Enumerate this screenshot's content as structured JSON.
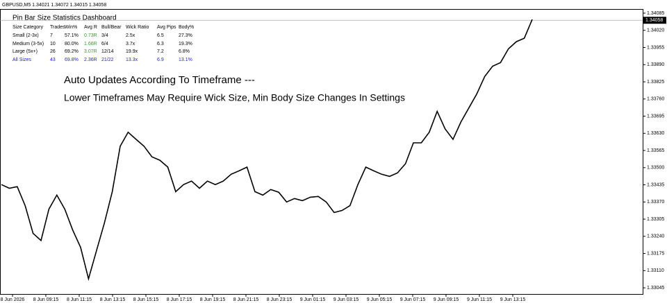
{
  "chart_data": {
    "type": "line",
    "symbol_header": "GBPUSD,M5  1.34021 1.34072 1.34015 1.34058",
    "title": "Pin Bar Size Statistics Dashboard",
    "annotations": [
      "Auto Updates According To Timeframe ---",
      "Lower Timeframes May Require Wick Size, Min Body Size Changes In Settings"
    ],
    "current_price": {
      "value": 1.34058,
      "label": "1.34058"
    },
    "table": {
      "columns": [
        "Size Category",
        "Trades",
        "Win%",
        "Avg R",
        "Bull/Bear",
        "Wick Ratio",
        "Avg Pips",
        "Body%"
      ],
      "rows": [
        [
          "Small (2-3x)",
          "7",
          "57.1%",
          "0.73R",
          "3/4",
          "2.5x",
          "6.5",
          "27.3%"
        ],
        [
          "Medium (3-5x)",
          "10",
          "80.0%",
          "1.66R",
          "6/4",
          "3.7x",
          "6.3",
          "19.3%"
        ],
        [
          "Large (5x+)",
          "26",
          "69.2%",
          "3.07R",
          "12/14",
          "19.9x",
          "7.2",
          "6.8%"
        ],
        [
          "All Sizes",
          "43",
          "69.8%",
          "2.36R",
          "21/22",
          "13.3x",
          "6.9",
          "13.1%"
        ]
      ]
    },
    "x_labels": [
      "8 Jun 2026",
      "8 Jun 09:15",
      "8 Jun 11:15",
      "8 Jun 13:15",
      "8 Jun 15:15",
      "8 Jun 17:15",
      "8 Jun 19:15",
      "8 Jun 21:15",
      "8 Jun 23:15",
      "9 Jun 01:15",
      "9 Jun 03:15",
      "9 Jun 05:15",
      "9 Jun 07:15",
      "9 Jun 09:15",
      "9 Jun 11:15",
      "9 Jun 13:15"
    ],
    "series": [
      {
        "name": "GBPUSD",
        "color": "#000000",
        "values": [
          1.33436,
          1.33422,
          1.33428,
          1.33356,
          1.33251,
          1.33224,
          1.33343,
          1.33396,
          1.33343,
          1.33264,
          1.33198,
          1.33079,
          1.33185,
          1.3329,
          1.33409,
          1.33581,
          1.33634,
          1.33607,
          1.33581,
          1.33541,
          1.33528,
          1.33502,
          1.33409,
          1.33436,
          1.33449,
          1.33422,
          1.33449,
          1.33436,
          1.33449,
          1.33475,
          1.33488,
          1.33502,
          1.33409,
          1.33396,
          1.33417,
          1.33407,
          1.3337,
          1.33383,
          1.33375,
          1.33388,
          1.33391,
          1.3337,
          1.3333,
          1.33338,
          1.33356,
          1.33436,
          1.33502,
          1.33488,
          1.33475,
          1.33467,
          1.3348,
          1.33515,
          1.33594,
          1.33594,
          1.33634,
          1.33713,
          1.33647,
          1.33607,
          1.33673,
          1.33726,
          1.33779,
          1.33845,
          1.33884,
          1.33898,
          1.3395,
          1.33977,
          1.3399,
          1.34061
        ]
      }
    ],
    "ylim": [
      1.33019,
      1.34098
    ],
    "yticks": [
      1.34085,
      {
        "value": 1.3402,
        "label": "1.34020"
      },
      1.33955,
      {
        "value": 1.3389,
        "label": "1.33890"
      },
      1.33825,
      {
        "value": 1.3376,
        "label": "1.33760"
      },
      1.33695,
      {
        "value": 1.3363,
        "label": "1.33630"
      },
      1.33565,
      {
        "value": 1.335,
        "label": "1.33500"
      },
      1.33435,
      {
        "value": 1.3337,
        "label": "1.33370"
      },
      1.33305,
      {
        "value": 1.3324,
        "label": "1.33240"
      },
      1.33175,
      {
        "value": 1.3311,
        "label": "1.33110"
      },
      1.33045
    ]
  }
}
